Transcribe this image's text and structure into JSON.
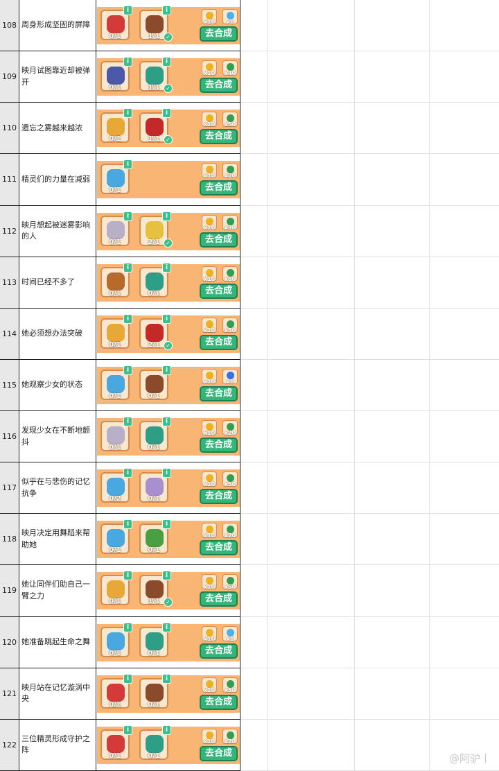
{
  "rows": [
    {
      "num": "108",
      "text": "周身形成坚固的屏障",
      "items": [
        {
          "icon": "scissors",
          "count": "0/1",
          "done": false
        },
        {
          "icon": "leather-bag",
          "count": "1/1",
          "done": true
        }
      ],
      "rewards": [
        {
          "icon": "gold-coin",
          "qty": "x10"
        },
        {
          "icon": "blue-potion",
          "qty": "x1"
        }
      ]
    },
    {
      "num": "109",
      "text": "映月试图靠近却被弹开",
      "items": [
        {
          "icon": "goggles",
          "count": "0/1",
          "done": false
        },
        {
          "icon": "teal-pack",
          "count": "1/1",
          "done": true
        }
      ],
      "rewards": [
        {
          "icon": "gold-coin",
          "qty": "x10"
        },
        {
          "icon": "green-cash",
          "qty": "x40"
        }
      ]
    },
    {
      "num": "110",
      "text": "遗忘之雾越来越浓",
      "items": [
        {
          "icon": "glasses",
          "count": "0/1",
          "done": false
        },
        {
          "icon": "red-glove",
          "count": "1/1",
          "done": true
        }
      ],
      "rewards": [
        {
          "icon": "gold-coin",
          "qty": "x10"
        },
        {
          "icon": "green-cash",
          "qty": "x50"
        }
      ]
    },
    {
      "num": "111",
      "text": "精灵们的力量在减弱",
      "items": [
        {
          "icon": "magnifier",
          "count": "0/1",
          "done": false
        }
      ],
      "rewards": [
        {
          "icon": "gold-coin",
          "qty": "x10"
        },
        {
          "icon": "green-cash",
          "qty": "x20"
        }
      ]
    },
    {
      "num": "112",
      "text": "映月想起被迷雾影响的人",
      "items": [
        {
          "icon": "fan",
          "count": "0/1",
          "done": false
        },
        {
          "icon": "scroll",
          "count": "2/1",
          "done": true
        }
      ],
      "rewards": [
        {
          "icon": "gold-coin",
          "qty": "x10"
        },
        {
          "icon": "green-cash",
          "qty": "x30"
        }
      ]
    },
    {
      "num": "113",
      "text": "时间已经不多了",
      "items": [
        {
          "icon": "telescope",
          "count": "0/1",
          "done": false
        },
        {
          "icon": "teal-pack",
          "count": "0/1",
          "done": false
        }
      ],
      "rewards": [
        {
          "icon": "gold-coin",
          "qty": "x10"
        },
        {
          "icon": "green-cash",
          "qty": "x80"
        }
      ]
    },
    {
      "num": "114",
      "text": "她必须想办法突破",
      "items": [
        {
          "icon": "glasses",
          "count": "0/1",
          "done": false
        },
        {
          "icon": "red-glove",
          "count": "2/1",
          "done": true
        }
      ],
      "rewards": [
        {
          "icon": "gold-coin",
          "qty": "x10"
        },
        {
          "icon": "green-cash",
          "qty": "x50"
        }
      ]
    },
    {
      "num": "115",
      "text": "她观察少女的状态",
      "items": [
        {
          "icon": "magnifier",
          "count": "0/1",
          "done": false
        },
        {
          "icon": "leather-bag",
          "count": "0/1",
          "done": false
        }
      ],
      "rewards": [
        {
          "icon": "gold-coin",
          "qty": "x10"
        },
        {
          "icon": "energy-orb",
          "qty": "x1"
        }
      ]
    },
    {
      "num": "116",
      "text": "发现少女在不断地颤抖",
      "items": [
        {
          "icon": "fan",
          "count": "0/1",
          "done": false
        },
        {
          "icon": "teal-pack",
          "count": "0/1",
          "done": false
        }
      ],
      "rewards": [
        {
          "icon": "gold-coin",
          "qty": "x10"
        },
        {
          "icon": "green-cash",
          "qty": "x20"
        }
      ]
    },
    {
      "num": "117",
      "text": "似乎在与悲伤的记忆抗争",
      "items": [
        {
          "icon": "magnifier",
          "count": "0/2",
          "done": false
        },
        {
          "icon": "pearls",
          "count": "0/1",
          "done": false
        }
      ],
      "rewards": [
        {
          "icon": "gold-coin",
          "qty": "x10"
        },
        {
          "icon": "green-cash",
          "qty": "x50"
        }
      ]
    },
    {
      "num": "118",
      "text": "映月决定用舞蹈来帮助她",
      "items": [
        {
          "icon": "magnifier",
          "count": "0/1",
          "done": false
        },
        {
          "icon": "potted-plant",
          "count": "0/1",
          "done": false
        }
      ],
      "rewards": [
        {
          "icon": "gold-coin",
          "qty": "x10"
        },
        {
          "icon": "green-cash",
          "qty": "x20"
        }
      ]
    },
    {
      "num": "119",
      "text": "她让同伴们助自己一臂之力",
      "items": [
        {
          "icon": "glasses",
          "count": "0/1",
          "done": false
        },
        {
          "icon": "leather-bag",
          "count": "1/1",
          "done": true
        }
      ],
      "rewards": [
        {
          "icon": "gold-coin",
          "qty": "x10"
        },
        {
          "icon": "green-cash",
          "qty": "x50"
        }
      ]
    },
    {
      "num": "120",
      "text": "她准备跳起生命之舞",
      "items": [
        {
          "icon": "magnifier",
          "count": "0/1",
          "done": false
        },
        {
          "icon": "teal-pack",
          "count": "0/1",
          "done": false
        }
      ],
      "rewards": [
        {
          "icon": "gold-coin",
          "qty": "x10"
        },
        {
          "icon": "blue-potion",
          "qty": "x1"
        }
      ]
    },
    {
      "num": "121",
      "text": "映月站在记忆漩涡中央",
      "items": [
        {
          "icon": "scissors",
          "count": "0/1",
          "done": false
        },
        {
          "icon": "leather-bag",
          "count": "0/1",
          "done": false
        }
      ],
      "rewards": [
        {
          "icon": "gold-coin",
          "qty": "x10"
        },
        {
          "icon": "green-cash",
          "qty": "x50"
        }
      ]
    },
    {
      "num": "122",
      "text": "三位精灵形成守护之阵",
      "items": [
        {
          "icon": "scissors",
          "count": "0/1",
          "done": false
        },
        {
          "icon": "teal-pack",
          "count": "0/1",
          "done": false
        }
      ],
      "rewards": [
        {
          "icon": "gold-coin",
          "qty": "x10"
        },
        {
          "icon": "green-cash",
          "qty": "x20"
        }
      ]
    }
  ],
  "button_label": "去合成",
  "info_glyph": "i",
  "check_glyph": "✓",
  "watermark": "@阿驴丨",
  "colors": {
    "banner": "#f8b574",
    "button": "#34b57a",
    "badge": "#3cc08a",
    "scissors": "#d33a3a",
    "leather-bag": "#8b4a2a",
    "goggles": "#4a5aa8",
    "teal-pack": "#2f9e86",
    "glasses": "#e8a838",
    "red-glove": "#c22a2a",
    "magnifier": "#4aa8e0",
    "fan": "#b8b0c8",
    "scroll": "#e8c040",
    "telescope": "#b86a2a",
    "pearls": "#a890d0",
    "potted-plant": "#4aa040",
    "gold-coin": "#f0b020",
    "green-cash": "#30a050",
    "blue-potion": "#4ab0f0",
    "energy-orb": "#3a70e0"
  }
}
